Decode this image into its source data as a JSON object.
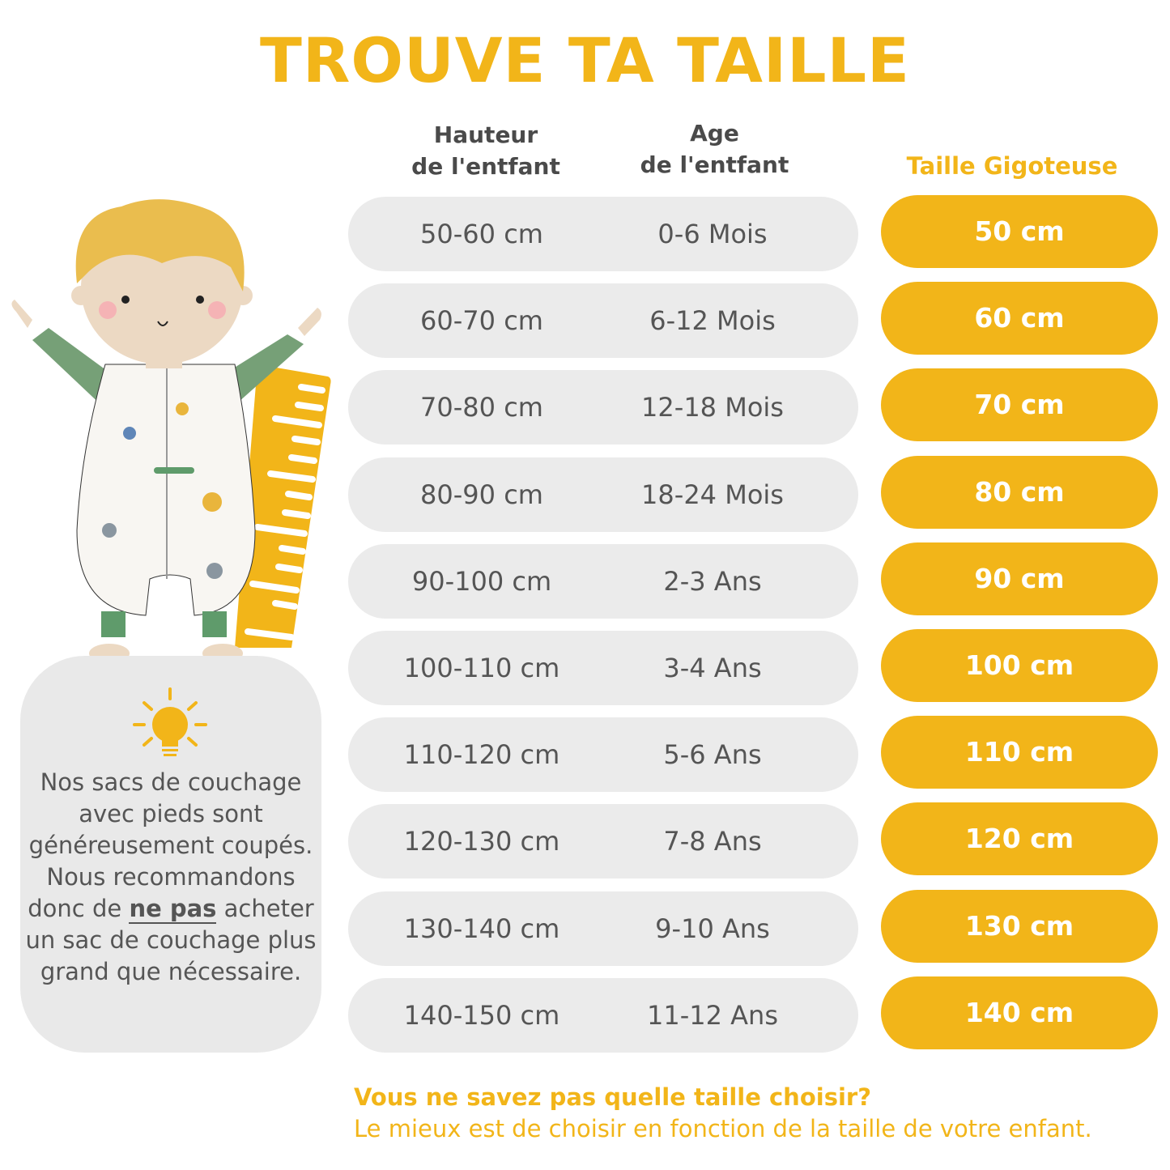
{
  "title": "TROUVE TA TAILLE",
  "columns": {
    "height": [
      "Hauteur",
      "de l'entfant"
    ],
    "age": [
      "Age",
      "de l'entfant"
    ],
    "size": "Taille Gigoteuse"
  },
  "rows": [
    {
      "height": "50-60 cm",
      "age": "0-6 Mois",
      "size": "50 cm"
    },
    {
      "height": "60-70 cm",
      "age": "6-12 Mois",
      "size": "60 cm"
    },
    {
      "height": "70-80 cm",
      "age": "12-18 Mois",
      "size": "70 cm"
    },
    {
      "height": "80-90 cm",
      "age": "18-24 Mois",
      "size": "80 cm"
    },
    {
      "height": "90-100 cm",
      "age": "2-3 Ans",
      "size": "90 cm"
    },
    {
      "height": "100-110 cm",
      "age": "3-4 Ans",
      "size": "100 cm"
    },
    {
      "height": "110-120 cm",
      "age": "5-6 Ans",
      "size": "110 cm"
    },
    {
      "height": "120-130 cm",
      "age": "7-8 Ans",
      "size": "120 cm"
    },
    {
      "height": "130-140 cm",
      "age": "9-10 Ans",
      "size": "130 cm"
    },
    {
      "height": "140-150 cm",
      "age": "11-12 Ans",
      "size": "140 cm"
    }
  ],
  "tip": {
    "icon": "lightbulb-icon",
    "before": "Nos sacs de couchage avec pieds sont généreusement coupés. Nous recommandons donc de ",
    "emphasis": "ne pas",
    "after": " acheter un sac de couchage plus grand que nécessaire."
  },
  "footer": {
    "question": "Vous ne savez pas quelle taille choisir?",
    "answer": "Le mieux est de choisir en fonction de la taille de votre enfant."
  },
  "colors": {
    "accent": "#f2b519",
    "row_bg": "#ebebeb",
    "text": "#555555"
  }
}
